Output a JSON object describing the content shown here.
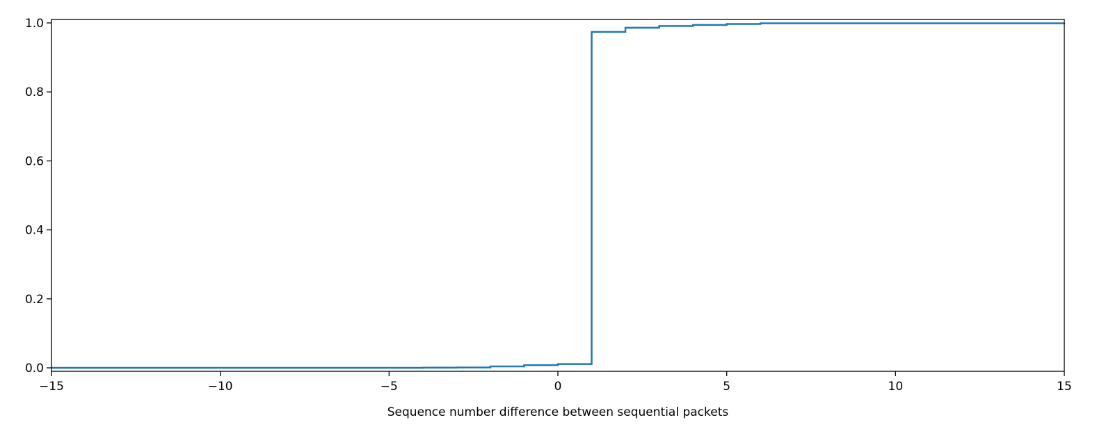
{
  "chart_data": {
    "type": "line",
    "step": "post",
    "title": "",
    "xlabel": "Sequence number difference between sequential packets",
    "ylabel": "",
    "xlim": [
      -15,
      15
    ],
    "ylim": [
      -0.01,
      1.01
    ],
    "xticks": [
      -15,
      -10,
      -5,
      0,
      5,
      10,
      15
    ],
    "xtick_labels": [
      "−15",
      "−10",
      "−5",
      "0",
      "5",
      "10",
      "15"
    ],
    "yticks": [
      0.0,
      0.2,
      0.4,
      0.6,
      0.8,
      1.0
    ],
    "ytick_labels": [
      "0.0",
      "0.2",
      "0.4",
      "0.6",
      "0.8",
      "1.0"
    ],
    "grid": false,
    "legend": "none",
    "series": [
      {
        "color": "#1f77b4",
        "x": [
          -15,
          -4,
          -3,
          -2,
          -1,
          0,
          1,
          2,
          3,
          4,
          5,
          6,
          15
        ],
        "y": [
          0.0,
          0.0005,
          0.001,
          0.004,
          0.008,
          0.011,
          0.974,
          0.986,
          0.991,
          0.994,
          0.997,
          0.999,
          1.0
        ]
      }
    ]
  }
}
